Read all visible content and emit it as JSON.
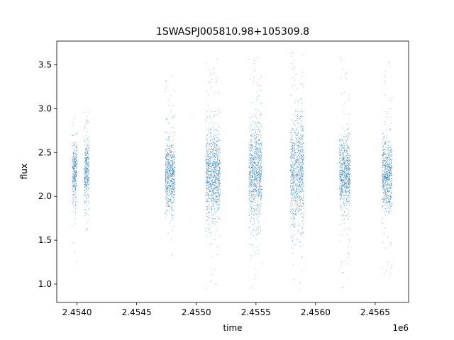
{
  "chart_data": {
    "type": "scatter",
    "title": "1SWASPJ005810.98+105309.8",
    "xlabel": "time",
    "ylabel": "flux",
    "x_offset_label": "1e6",
    "x_tick_labels": [
      "2.4540",
      "2.4545",
      "2.4550",
      "2.4555",
      "2.4560",
      "2.4565"
    ],
    "x_ticks": [
      2454000,
      2454500,
      2455000,
      2455500,
      2456000,
      2456500
    ],
    "y_tick_labels": [
      "1.0",
      "1.5",
      "2.0",
      "2.5",
      "3.0",
      "3.5"
    ],
    "y_ticks": [
      1.0,
      1.5,
      2.0,
      2.5,
      3.0,
      3.5
    ],
    "xlim": [
      2453830,
      2456780
    ],
    "ylim": [
      0.79,
      3.77
    ],
    "grid": false,
    "legend": "none",
    "color": "#1f77b4",
    "clusters": [
      {
        "x_start": 2453960,
        "x_end": 2454000,
        "center": 2.27,
        "spread": 0.18,
        "min": 1.15,
        "max": 3.0
      },
      {
        "x_start": 2454060,
        "x_end": 2454100,
        "center": 2.27,
        "spread": 0.2,
        "min": 1.5,
        "max": 3.0
      },
      {
        "x_start": 2454740,
        "x_end": 2454820,
        "center": 2.25,
        "spread": 0.2,
        "min": 1.3,
        "max": 3.4
      },
      {
        "x_start": 2455080,
        "x_end": 2455200,
        "center": 2.25,
        "spread": 0.25,
        "min": 0.95,
        "max": 3.6
      },
      {
        "x_start": 2455440,
        "x_end": 2455550,
        "center": 2.27,
        "spread": 0.27,
        "min": 0.95,
        "max": 3.65
      },
      {
        "x_start": 2455790,
        "x_end": 2455900,
        "center": 2.3,
        "spread": 0.32,
        "min": 0.93,
        "max": 3.65
      },
      {
        "x_start": 2456200,
        "x_end": 2456290,
        "center": 2.27,
        "spread": 0.2,
        "min": 0.95,
        "max": 3.6
      },
      {
        "x_start": 2456560,
        "x_end": 2456640,
        "center": 2.25,
        "spread": 0.2,
        "min": 1.1,
        "max": 3.6
      }
    ]
  }
}
